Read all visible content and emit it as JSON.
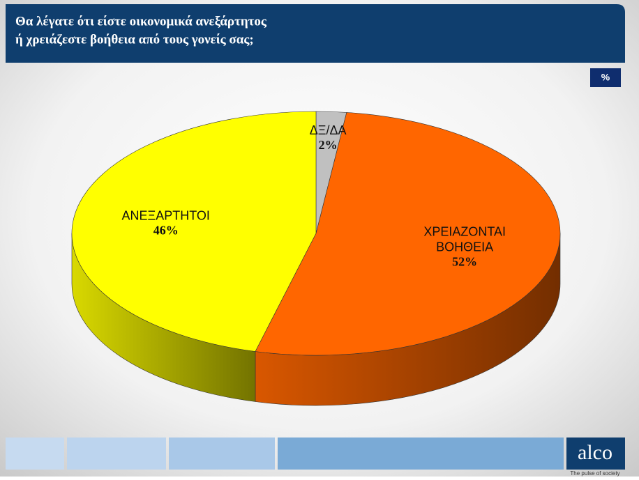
{
  "chart_data": {
    "type": "pie3d",
    "title": [
      "Θα λέγατε ότι είστε οικονομικά ανεξάρτητος",
      "ή χρειάζεστε βοήθεια από τους γονείς σας;"
    ],
    "unit": "%",
    "categories": [
      "ΔΞ/ΔΑ",
      "ΧΡΕΙΑΖΟΝΤΑΙ ΒΟΗΘΕΙΑ",
      "ΑΝΕΞΑΡΤΗΤΟΙ"
    ],
    "values": [
      2,
      52,
      46
    ],
    "value_labels": [
      "2%",
      "52%",
      "46%"
    ],
    "colors": [
      "#c0c0c0",
      "#ff6600",
      "#ffff00"
    ]
  },
  "footer": {
    "logo": "alco",
    "tagline": "The pulse of society"
  }
}
